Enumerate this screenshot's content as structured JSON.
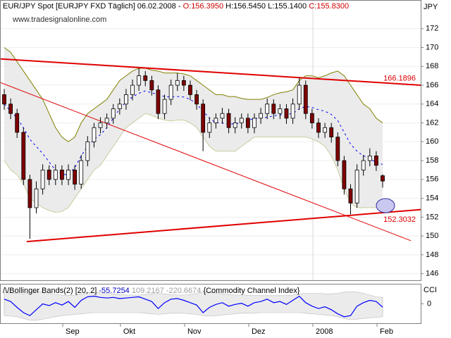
{
  "chart_data": [
    {
      "type": "candlestick",
      "header": {
        "symbol": "EUR/JPY Spot [EURJPY FXD  Täglich] 06.02.2008 -",
        "open": "O:156.3950",
        "high": "H:156.5450",
        "low": "L:155.1400",
        "close": "C:155.8300"
      },
      "watermark": "www.tradesignalonline.com",
      "y_label": "JPY",
      "categories": [
        null,
        null,
        null,
        null,
        null,
        null,
        null,
        null,
        null,
        null,
        "Sep",
        null,
        null,
        null,
        null,
        null,
        null,
        null,
        null,
        "Okt",
        null,
        null,
        null,
        null,
        null,
        null,
        null,
        null,
        null,
        "Nov",
        null,
        null,
        null,
        null,
        null,
        null,
        null,
        null,
        null,
        "Dez",
        null,
        null,
        null,
        null,
        null,
        null,
        null,
        null,
        null,
        "2008",
        null,
        null,
        null,
        null,
        null,
        null,
        null,
        null,
        null,
        "Feb"
      ],
      "open": [
        165,
        164,
        163,
        161,
        156,
        153,
        155,
        157,
        156,
        157,
        156,
        157,
        155.5,
        158,
        160,
        161.5,
        162,
        162.5,
        163.5,
        164,
        165,
        166,
        167,
        166.5,
        165.5,
        163,
        164.5,
        166,
        166.5,
        166,
        165,
        164,
        161,
        162,
        162.5,
        163,
        161.5,
        162,
        162.5,
        161.5,
        162.5,
        163,
        164,
        163,
        163.5,
        162.5,
        164,
        166,
        163,
        162,
        161,
        161.5,
        160.5,
        158,
        155,
        153.5,
        157,
        158,
        158.5,
        156.395
      ],
      "high": [
        165.6,
        164.6,
        163.5,
        161.5,
        156.5,
        155.8,
        157.6,
        157.5,
        157.6,
        157.5,
        157.6,
        157.5,
        158.6,
        160.6,
        162,
        162.6,
        163,
        164,
        164.6,
        165.6,
        166.6,
        167.8,
        167.5,
        167,
        166,
        165,
        166.6,
        167.3,
        167,
        166.5,
        165.5,
        164.5,
        162.6,
        163,
        163.6,
        163.5,
        162.6,
        163,
        163,
        163,
        163.6,
        164.6,
        164.5,
        164,
        164,
        164.6,
        166.8,
        166.5,
        163.5,
        162.5,
        162,
        162,
        161,
        158.5,
        155.5,
        157.6,
        158.6,
        159.3,
        159,
        156.545
      ],
      "low": [
        163.4,
        162.4,
        160.4,
        155.4,
        149.7,
        152.4,
        154.4,
        155.4,
        155.4,
        155.4,
        155.4,
        154.9,
        155,
        157.4,
        159.4,
        160.9,
        161.4,
        161.9,
        162.9,
        163.4,
        164.4,
        165.4,
        165.9,
        164.9,
        162.4,
        162.4,
        163.9,
        165.4,
        165.4,
        164.4,
        163.4,
        159,
        160.4,
        161.4,
        161.9,
        160.9,
        160.9,
        161.4,
        160.9,
        160.9,
        161.9,
        162.4,
        162.4,
        162.4,
        161.9,
        161.9,
        163.4,
        162.4,
        161.4,
        160.4,
        160.4,
        159.9,
        157.4,
        154.4,
        152.3,
        153,
        156.4,
        157.4,
        156.9,
        155.14
      ],
      "close": [
        164,
        163,
        161,
        156,
        153,
        155,
        157,
        156,
        157,
        156,
        157,
        155.5,
        158,
        160,
        161.5,
        162,
        162.5,
        163.5,
        164,
        165,
        166,
        167,
        166.5,
        165.5,
        163,
        164.5,
        166,
        166.5,
        166,
        165,
        164,
        161,
        162,
        162.5,
        163,
        161.5,
        162,
        162.5,
        161.5,
        162.5,
        163,
        164,
        163,
        163.5,
        162.5,
        164,
        166,
        163,
        162,
        161,
        161.5,
        160.5,
        158,
        155,
        153.5,
        157,
        158,
        158.5,
        157.5,
        155.83
      ],
      "up_color": "#ffffff",
      "down_color": "#800000",
      "bands": {
        "upper": [
          170,
          169.5,
          168.5,
          167.5,
          166.5,
          165.5,
          164.5,
          163,
          161.5,
          160.5,
          160,
          160.5,
          162,
          163,
          163.5,
          164,
          164.5,
          165.5,
          166.5,
          167,
          167.5,
          167.8,
          167.8,
          167.6,
          167.5,
          167.3,
          167.3,
          167.3,
          167.2,
          167,
          166.5,
          166,
          165.5,
          165,
          165,
          164.8,
          164.8,
          164.6,
          164.5,
          164.5,
          164.5,
          164.7,
          165,
          165.2,
          165.3,
          165.5,
          166.5,
          167,
          167,
          166.8,
          167,
          167.3,
          167.5,
          167,
          166,
          165,
          164,
          163.5,
          162.5,
          162
        ],
        "middle": [
          164,
          163.25,
          162.5,
          161.5,
          160.25,
          159.5,
          158.75,
          157.85,
          157,
          156.55,
          156.5,
          157.25,
          158.5,
          159.5,
          160.25,
          160.75,
          161.5,
          162.5,
          163.5,
          164.25,
          164.75,
          165.15,
          165.4,
          165.2,
          165,
          164.8,
          164.75,
          164.8,
          164.75,
          164.5,
          164,
          163.25,
          162.5,
          162,
          162,
          161.9,
          161.9,
          162.05,
          162.25,
          162.5,
          162.5,
          162.6,
          162.75,
          162.85,
          162.9,
          163,
          163.5,
          163.75,
          163.65,
          163.4,
          163.25,
          162.9,
          162.25,
          161,
          159.75,
          159,
          158.5,
          158.25,
          157.75,
          157.6
        ],
        "lower": [
          158,
          157,
          156.5,
          155.5,
          154,
          153.5,
          153,
          152.7,
          152.5,
          152.6,
          153,
          154,
          155,
          156,
          157,
          157.5,
          158.5,
          159.5,
          160.5,
          161.5,
          162,
          162.5,
          163,
          162.8,
          162.5,
          162.3,
          162.2,
          162.3,
          162.3,
          162,
          161.5,
          160.5,
          159.5,
          159,
          159,
          159,
          159,
          159.5,
          160,
          160.5,
          160.5,
          160.5,
          160.5,
          160.5,
          160.5,
          160.5,
          160.5,
          160.5,
          160.3,
          160,
          159.5,
          158.5,
          157,
          155,
          153.5,
          153,
          153,
          153,
          153,
          153.2
        ],
        "band_color": "#808000",
        "mid_color": "#0000ff",
        "fill": "#ebebeb"
      },
      "trendlines": [
        {
          "x": [
            -0.66,
            64.95
          ],
          "y": [
            168.8,
            166.0
          ],
          "width": 2,
          "color": "#e00000",
          "value": 166.1896
        },
        {
          "x": [
            3.5,
            64.95
          ],
          "y": [
            149.4,
            152.8
          ],
          "width": 2,
          "color": "#e00000",
          "value": 152.3032
        },
        {
          "x": [
            -0.66,
            63.4
          ],
          "y": [
            166.3,
            149.5
          ],
          "width": 1,
          "color": "#e00000"
        }
      ],
      "ylim": [
        145.3,
        173.7
      ],
      "yticks": [
        146,
        148,
        150,
        152,
        154,
        156,
        158,
        160,
        162,
        164,
        166,
        168,
        170,
        172
      ],
      "grid": true
    },
    {
      "type": "line",
      "header": {
        "name": "Bollinger Bands(2) [20, 2]",
        "value": "-55.7254",
        "upper": "109.2167",
        "lower": "-220.6674",
        "study": "{Commodity Channel Index}"
      },
      "y_label": "CCI",
      "values": [
        80,
        40,
        -60,
        -150,
        -200,
        -100,
        0,
        -30,
        20,
        -20,
        40,
        -60,
        60,
        120,
        130,
        110,
        100,
        110,
        90,
        100,
        110,
        120,
        80,
        40,
        -80,
        20,
        80,
        90,
        60,
        20,
        -20,
        -150,
        -60,
        -10,
        20,
        -40,
        -10,
        10,
        -40,
        20,
        40,
        80,
        20,
        40,
        -10,
        60,
        130,
        20,
        -40,
        -80,
        -50,
        -100,
        -170,
        -220,
        -200,
        -40,
        20,
        60,
        40,
        -55.7254
      ],
      "band_upper": [
        200,
        190,
        180,
        170,
        190,
        210,
        200,
        180,
        160,
        150,
        140,
        150,
        170,
        190,
        200,
        190,
        180,
        170,
        160,
        150,
        150,
        150,
        160,
        170,
        180,
        170,
        160,
        150,
        150,
        160,
        180,
        200,
        200,
        190,
        170,
        160,
        150,
        150,
        150,
        140,
        140,
        140,
        140,
        140,
        140,
        150,
        170,
        180,
        180,
        180,
        170,
        170,
        180,
        200,
        210,
        200,
        180,
        150,
        120,
        109.2167
      ],
      "band_lower": [
        -200,
        -210,
        -220,
        -250,
        -280,
        -280,
        -260,
        -240,
        -220,
        -200,
        -190,
        -180,
        -170,
        -160,
        -150,
        -150,
        -150,
        -150,
        -150,
        -150,
        -150,
        -150,
        -160,
        -170,
        -180,
        -170,
        -160,
        -160,
        -160,
        -170,
        -180,
        -200,
        -210,
        -200,
        -190,
        -180,
        -170,
        -160,
        -160,
        -160,
        -150,
        -150,
        -150,
        -150,
        -150,
        -150,
        -150,
        -160,
        -170,
        -180,
        -190,
        -200,
        -220,
        -250,
        -270,
        -260,
        -250,
        -240,
        -230,
        -220.6674
      ],
      "color": "#0000ff",
      "band_color": "#bbbbbb",
      "fill": "#ebebeb",
      "ylim": [
        -330,
        330
      ],
      "yticks": [
        0
      ]
    }
  ]
}
